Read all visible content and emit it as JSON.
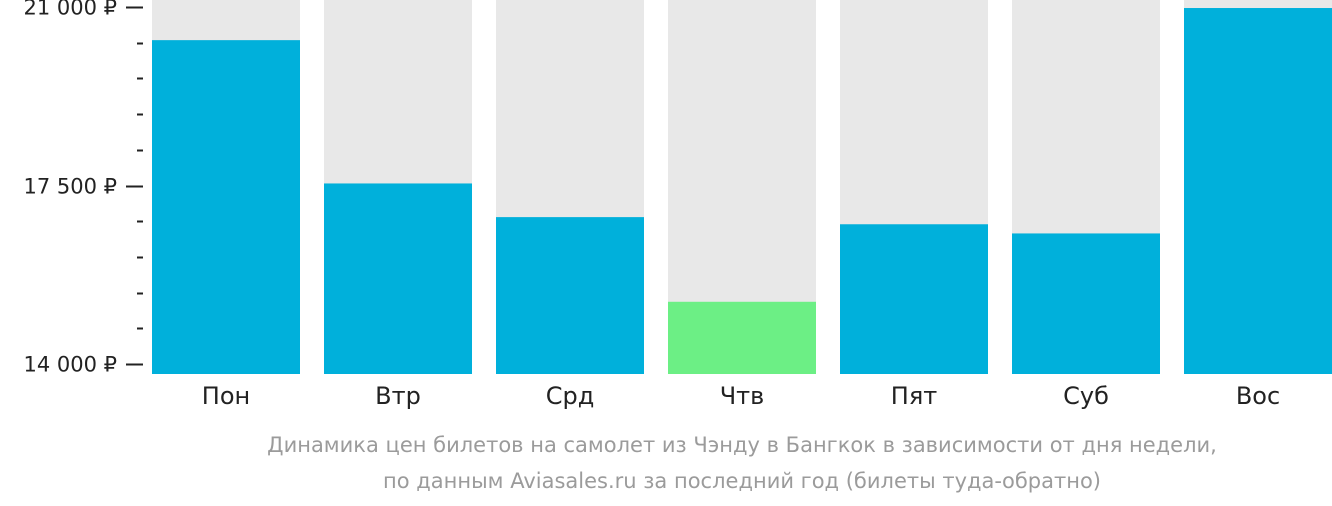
{
  "chart_data": {
    "type": "bar",
    "categories": [
      "Пон",
      "Втр",
      "Срд",
      "Чтв",
      "Пят",
      "Суб",
      "Вос"
    ],
    "values": [
      20350,
      17540,
      16880,
      15220,
      16740,
      16560,
      20980
    ],
    "ylim": [
      14000,
      21000
    ],
    "y_ticks": [
      {
        "value": 21000,
        "label": "21 000 ₽"
      },
      {
        "value": 17500,
        "label": "17 500 ₽"
      },
      {
        "value": 14000,
        "label": "14 000 ₽"
      }
    ],
    "y_minor_tick_step": 700,
    "highlight_category": "Чтв",
    "grid": false,
    "legend": "none"
  },
  "caption": {
    "line1": "Динамика цен билетов на самолет из Чэнду в Бангкок в зависимости от дня недели,",
    "line2": "по данным Aviasales.ru за последний год (билеты туда-обратно)"
  },
  "colors": {
    "bar": "#00b0db",
    "bar_highlight": "#6cef85",
    "bar_background": "#e8e8e8",
    "axis": "#222222",
    "caption": "#9b9b9b"
  }
}
